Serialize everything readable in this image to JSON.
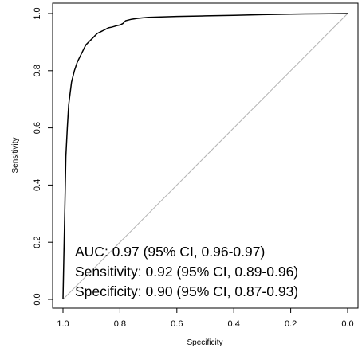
{
  "chart_data": {
    "type": "line",
    "title": "",
    "xlabel": "Specificity",
    "ylabel": "Sensitivity",
    "xlim": [
      1.0,
      0.0
    ],
    "ylim": [
      0.0,
      1.0
    ],
    "x_ticks": [
      "1.0",
      "0.8",
      "0.6",
      "0.4",
      "0.2",
      "0.0"
    ],
    "y_ticks": [
      "0.0",
      "0.2",
      "0.4",
      "0.6",
      "0.8",
      "1.0"
    ],
    "grid": false,
    "legend": "none",
    "series": [
      {
        "x": [
          1.0,
          0.998,
          0.995,
          0.992,
          0.99,
          0.985,
          0.98,
          0.975,
          0.97,
          0.96,
          0.95,
          0.94,
          0.93,
          0.92,
          0.91,
          0.9,
          0.89,
          0.88,
          0.87,
          0.86,
          0.85,
          0.84,
          0.83,
          0.82,
          0.81,
          0.8,
          0.79,
          0.78,
          0.76,
          0.74,
          0.72,
          0.7,
          0.6,
          0.5,
          0.4,
          0.3,
          0.2,
          0.1,
          0.0
        ],
        "y": [
          0.0,
          0.1,
          0.25,
          0.4,
          0.5,
          0.6,
          0.68,
          0.72,
          0.76,
          0.8,
          0.83,
          0.85,
          0.87,
          0.89,
          0.9,
          0.91,
          0.92,
          0.93,
          0.935,
          0.94,
          0.945,
          0.95,
          0.952,
          0.955,
          0.958,
          0.96,
          0.965,
          0.975,
          0.98,
          0.983,
          0.985,
          0.987,
          0.99,
          0.992,
          0.994,
          0.996,
          0.998,
          0.999,
          1.0
        ],
        "color": "#000000"
      }
    ],
    "reference_line": {
      "x": [
        1.0,
        0.0
      ],
      "y": [
        0.0,
        1.0
      ],
      "color": "#b3b3b3"
    },
    "annotations": [
      "AUC: 0.97 (95% CI, 0.96-0.97)",
      "Sensitivity: 0.92 (95% CI, 0.89-0.96)",
      "Specificity: 0.90 (95% CI, 0.87-0.93)"
    ]
  }
}
